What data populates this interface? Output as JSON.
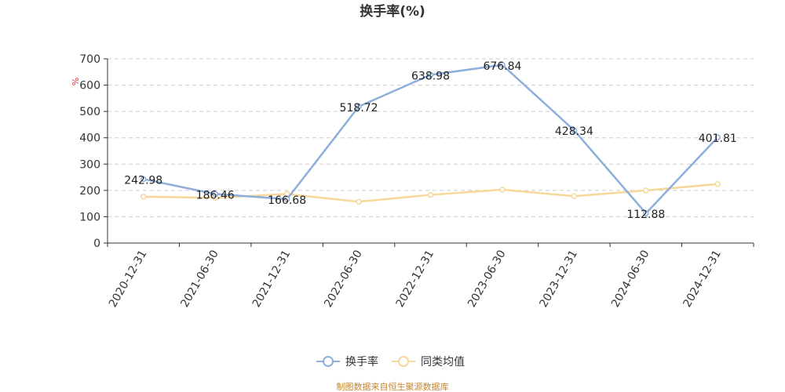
{
  "chart_data": {
    "type": "line",
    "title": "换手率(%)",
    "unit_label": "%",
    "categories": [
      "2020-12-31",
      "2021-06-30",
      "2021-12-31",
      "2022-06-30",
      "2022-12-31",
      "2023-06-30",
      "2023-12-31",
      "2024-06-30",
      "2024-12-31"
    ],
    "ylim": [
      0,
      700
    ],
    "yticks": [
      0,
      100,
      200,
      300,
      400,
      500,
      600,
      700
    ],
    "grid": true,
    "legend_position": "bottom",
    "series": [
      {
        "name": "换手率",
        "color": "#8eaedb",
        "values": [
          242.98,
          186.46,
          166.68,
          518.72,
          638.98,
          676.84,
          428.34,
          112.88,
          401.81
        ],
        "labels": [
          "242.98",
          "186.46",
          "166.68",
          "518.72",
          "638.98",
          "676.84",
          "428.34",
          "112.88",
          "401.81"
        ]
      },
      {
        "name": "同类均值",
        "color": "#f7d79a",
        "values": [
          176,
          172,
          186,
          157,
          183,
          203,
          178,
          200,
          224
        ]
      }
    ]
  },
  "footer": {
    "source": "制图数据来自恒生聚源数据库"
  }
}
